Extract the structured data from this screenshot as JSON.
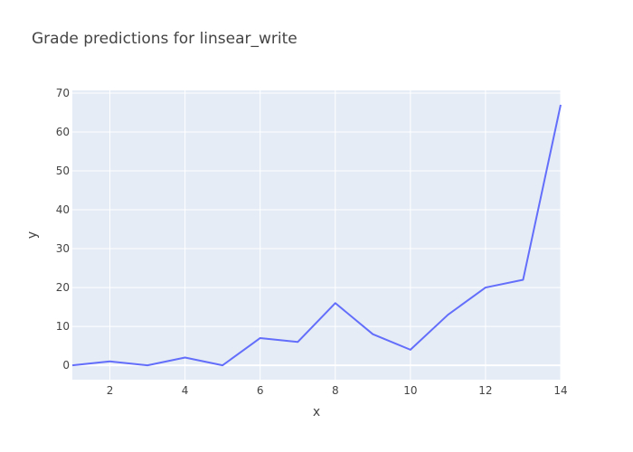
{
  "chart_data": {
    "type": "line",
    "title": "Grade predictions for linsear_write",
    "xlabel": "x",
    "ylabel": "y",
    "xlim": [
      1,
      14
    ],
    "ylim": [
      -3.7,
      70.7
    ],
    "x_ticks": [
      2,
      4,
      6,
      8,
      10,
      12,
      14
    ],
    "y_ticks": [
      0,
      10,
      20,
      30,
      40,
      50,
      60,
      70
    ],
    "grid": true,
    "colors": {
      "plot_bg": "#e5ecf6",
      "grid": "#ffffff",
      "line": "#636efa"
    },
    "series": [
      {
        "x": [
          1,
          2,
          3,
          4,
          5,
          6,
          7,
          8,
          9,
          10,
          11,
          12,
          13,
          14
        ],
        "values": [
          0,
          1,
          0,
          2,
          0,
          7,
          6,
          16,
          8,
          4,
          13,
          20,
          22,
          67
        ]
      }
    ]
  }
}
